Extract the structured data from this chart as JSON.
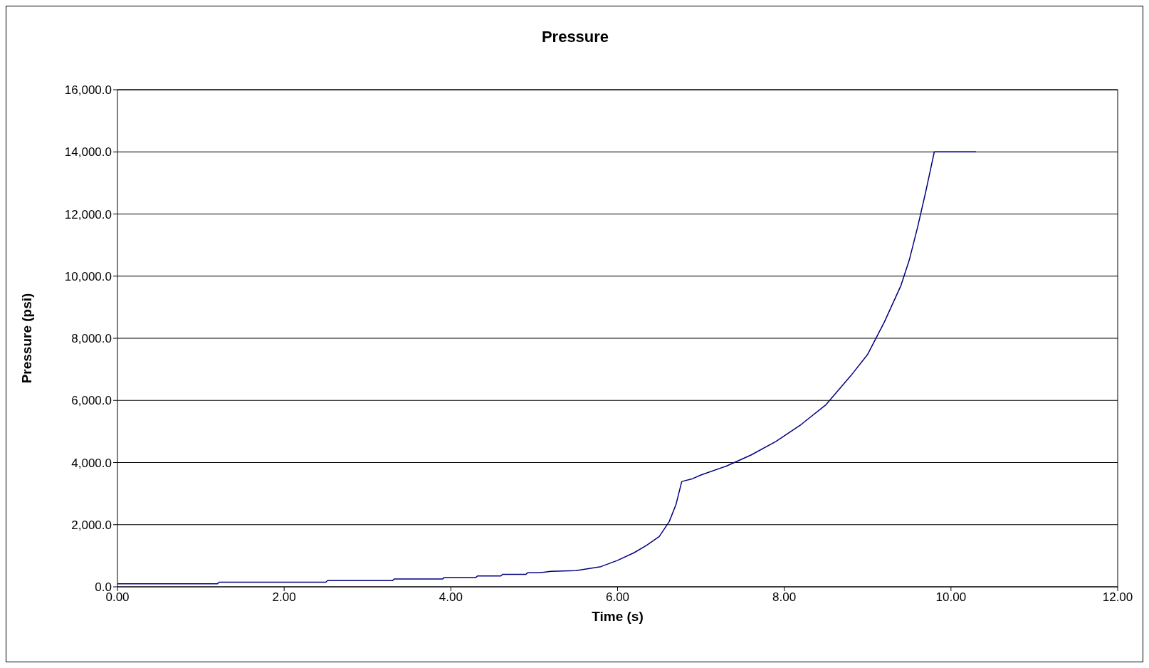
{
  "chart_data": {
    "type": "line",
    "title": "Pressure",
    "xlabel": "Time (s)",
    "ylabel": "Pressure (psi)",
    "xlim": [
      0,
      12
    ],
    "xticks": [
      {
        "value": 0,
        "label": "0.00"
      },
      {
        "value": 2,
        "label": "2.00"
      },
      {
        "value": 4,
        "label": "4.00"
      },
      {
        "value": 6,
        "label": "6.00"
      },
      {
        "value": 8,
        "label": "8.00"
      },
      {
        "value": 10,
        "label": "10.00"
      },
      {
        "value": 12,
        "label": "12.00"
      }
    ],
    "ylim": [
      0,
      16000
    ],
    "yticks": [
      {
        "value": 0,
        "label": "0.0"
      },
      {
        "value": 2000,
        "label": "2,000.0"
      },
      {
        "value": 4000,
        "label": "4,000.0"
      },
      {
        "value": 6000,
        "label": "6,000.0"
      },
      {
        "value": 8000,
        "label": "8,000.0"
      },
      {
        "value": 10000,
        "label": "10,000.0"
      },
      {
        "value": 12000,
        "label": "12,000.0"
      },
      {
        "value": 14000,
        "label": "14,000.0"
      },
      {
        "value": 16000,
        "label": "16,000.0"
      }
    ],
    "grid": "y",
    "marker": "none",
    "line_style": "solid",
    "series": [
      {
        "color": "#000080",
        "x": [
          0,
          1.2,
          1.22,
          2.5,
          2.52,
          3.3,
          3.32,
          3.9,
          3.92,
          4.3,
          4.32,
          4.6,
          4.62,
          4.9,
          4.92,
          5.05,
          5.2,
          5.5,
          5.8,
          6.0,
          6.2,
          6.35,
          6.5,
          6.62,
          6.7,
          6.77,
          6.9,
          7.0,
          7.3,
          7.6,
          7.9,
          8.2,
          8.5,
          8.8,
          9.0,
          9.2,
          9.4,
          9.5,
          9.6,
          9.7,
          9.8,
          10.3
        ],
        "values": [
          100,
          100,
          150,
          150,
          200,
          200,
          250,
          250,
          300,
          300,
          350,
          350,
          400,
          400,
          450,
          450,
          500,
          520,
          650,
          850,
          1100,
          1340,
          1620,
          2100,
          2640,
          3390,
          3480,
          3600,
          3880,
          4240,
          4680,
          5220,
          5860,
          6800,
          7480,
          8520,
          9700,
          10520,
          11580,
          12750,
          14000,
          14000
        ]
      }
    ]
  }
}
